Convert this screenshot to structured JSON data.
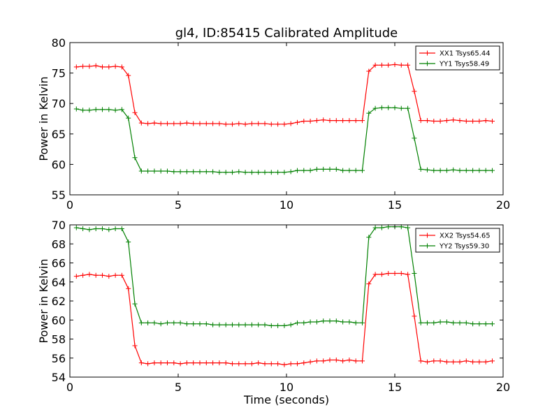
{
  "chart_data": [
    {
      "type": "line",
      "title": "gl4, ID:85415 Calibrated Amplitude",
      "xlabel": "",
      "ylabel": "Power in Kelvin",
      "xlim": [
        0,
        20
      ],
      "ylim": [
        55,
        80
      ],
      "xticks": [
        "0",
        "5",
        "10",
        "15",
        "20"
      ],
      "yticks": [
        "55",
        "60",
        "65",
        "70",
        "75",
        "80"
      ],
      "grid": false,
      "legend_position": "top-right",
      "x": [
        0.3,
        0.6,
        0.9,
        1.2,
        1.5,
        1.8,
        2.1,
        2.4,
        2.7,
        3.0,
        3.3,
        3.6,
        3.9,
        4.2,
        4.5,
        4.8,
        5.1,
        5.4,
        5.7,
        6.0,
        6.3,
        6.6,
        6.9,
        7.2,
        7.5,
        7.8,
        8.1,
        8.4,
        8.7,
        9.0,
        9.3,
        9.6,
        9.9,
        10.2,
        10.5,
        10.8,
        11.1,
        11.4,
        11.7,
        12.0,
        12.3,
        12.6,
        12.9,
        13.2,
        13.5,
        13.8,
        14.1,
        14.4,
        14.7,
        15.0,
        15.3,
        15.6,
        15.9,
        16.2,
        16.5,
        16.8,
        17.1,
        17.4,
        17.7,
        18.0,
        18.3,
        18.6,
        18.9,
        19.2,
        19.5
      ],
      "series": [
        {
          "name": "XX1 Tsys65.44",
          "color": "#ff0000",
          "values": [
            76.0,
            76.1,
            76.1,
            76.2,
            76.0,
            76.0,
            76.1,
            76.0,
            74.6,
            68.5,
            66.8,
            66.7,
            66.8,
            66.7,
            66.7,
            66.7,
            66.7,
            66.8,
            66.7,
            66.7,
            66.7,
            66.7,
            66.7,
            66.6,
            66.6,
            66.7,
            66.6,
            66.7,
            66.7,
            66.7,
            66.6,
            66.6,
            66.6,
            66.7,
            66.9,
            67.1,
            67.1,
            67.2,
            67.3,
            67.2,
            67.2,
            67.2,
            67.2,
            67.2,
            67.2,
            75.3,
            76.3,
            76.3,
            76.3,
            76.4,
            76.3,
            76.3,
            72.0,
            67.2,
            67.2,
            67.1,
            67.1,
            67.2,
            67.3,
            67.2,
            67.1,
            67.1,
            67.1,
            67.2,
            67.1
          ]
        },
        {
          "name": "YY1 Tsys58.49",
          "color": "#008000",
          "values": [
            69.1,
            68.9,
            68.9,
            69.0,
            69.0,
            69.0,
            68.9,
            69.0,
            67.6,
            61.1,
            58.9,
            58.9,
            58.9,
            58.9,
            58.9,
            58.8,
            58.8,
            58.8,
            58.8,
            58.8,
            58.8,
            58.8,
            58.7,
            58.7,
            58.7,
            58.8,
            58.7,
            58.7,
            58.7,
            58.7,
            58.7,
            58.7,
            58.7,
            58.8,
            59.0,
            59.0,
            59.0,
            59.2,
            59.2,
            59.2,
            59.2,
            59.0,
            59.0,
            59.0,
            59.0,
            68.4,
            69.2,
            69.3,
            69.3,
            69.3,
            69.2,
            69.2,
            64.3,
            59.2,
            59.1,
            59.0,
            59.0,
            59.0,
            59.1,
            59.0,
            59.0,
            59.0,
            59.0,
            59.0,
            59.0
          ]
        }
      ]
    },
    {
      "type": "line",
      "title": "",
      "xlabel": "Time (seconds)",
      "ylabel": "Power in Kelvin",
      "xlim": [
        0,
        20
      ],
      "ylim": [
        54,
        70
      ],
      "xticks": [
        "0",
        "5",
        "10",
        "15",
        "20"
      ],
      "yticks": [
        "54",
        "56",
        "58",
        "60",
        "62",
        "64",
        "66",
        "68",
        "70"
      ],
      "grid": false,
      "legend_position": "top-right",
      "x": [
        0.3,
        0.6,
        0.9,
        1.2,
        1.5,
        1.8,
        2.1,
        2.4,
        2.7,
        3.0,
        3.3,
        3.6,
        3.9,
        4.2,
        4.5,
        4.8,
        5.1,
        5.4,
        5.7,
        6.0,
        6.3,
        6.6,
        6.9,
        7.2,
        7.5,
        7.8,
        8.1,
        8.4,
        8.7,
        9.0,
        9.3,
        9.6,
        9.9,
        10.2,
        10.5,
        10.8,
        11.1,
        11.4,
        11.7,
        12.0,
        12.3,
        12.6,
        12.9,
        13.2,
        13.5,
        13.8,
        14.1,
        14.4,
        14.7,
        15.0,
        15.3,
        15.6,
        15.9,
        16.2,
        16.5,
        16.8,
        17.1,
        17.4,
        17.7,
        18.0,
        18.3,
        18.6,
        18.9,
        19.2,
        19.5
      ],
      "series": [
        {
          "name": "XX2 Tsys54.65",
          "color": "#ff0000",
          "values": [
            64.6,
            64.7,
            64.8,
            64.7,
            64.7,
            64.6,
            64.7,
            64.7,
            63.3,
            57.3,
            55.5,
            55.4,
            55.5,
            55.5,
            55.5,
            55.5,
            55.4,
            55.5,
            55.5,
            55.5,
            55.5,
            55.5,
            55.5,
            55.5,
            55.4,
            55.4,
            55.4,
            55.4,
            55.5,
            55.4,
            55.4,
            55.4,
            55.3,
            55.4,
            55.4,
            55.5,
            55.6,
            55.7,
            55.7,
            55.8,
            55.8,
            55.7,
            55.8,
            55.7,
            55.7,
            63.8,
            64.8,
            64.8,
            64.9,
            64.9,
            64.9,
            64.8,
            60.4,
            55.7,
            55.6,
            55.7,
            55.7,
            55.6,
            55.6,
            55.6,
            55.7,
            55.6,
            55.6,
            55.6,
            55.7
          ]
        },
        {
          "name": "YY2 Tsys59.30",
          "color": "#008000",
          "values": [
            69.7,
            69.6,
            69.5,
            69.6,
            69.6,
            69.5,
            69.6,
            69.6,
            68.2,
            61.7,
            59.7,
            59.7,
            59.7,
            59.6,
            59.7,
            59.7,
            59.7,
            59.6,
            59.6,
            59.6,
            59.6,
            59.5,
            59.5,
            59.5,
            59.5,
            59.5,
            59.5,
            59.5,
            59.5,
            59.5,
            59.4,
            59.4,
            59.4,
            59.5,
            59.7,
            59.7,
            59.8,
            59.8,
            59.9,
            59.9,
            59.9,
            59.8,
            59.8,
            59.7,
            59.7,
            68.7,
            69.7,
            69.7,
            69.8,
            69.8,
            69.8,
            69.7,
            64.9,
            59.7,
            59.7,
            59.7,
            59.8,
            59.8,
            59.7,
            59.7,
            59.7,
            59.6,
            59.6,
            59.6,
            59.6
          ]
        }
      ]
    }
  ]
}
